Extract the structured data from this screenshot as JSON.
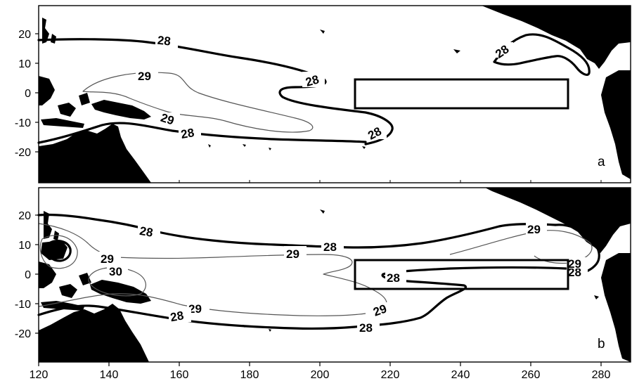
{
  "figure": {
    "x_ticks": [
      "120",
      "140",
      "160",
      "180",
      "200",
      "220",
      "240",
      "260",
      "280"
    ],
    "y_ticks": [
      "20",
      "10",
      "0",
      "-10",
      "-20"
    ]
  },
  "panels": [
    {
      "label": "a",
      "contour_labels": {
        "a": "28",
        "b": "29",
        "c": "28",
        "d": "29",
        "e": "28",
        "f": "28"
      }
    },
    {
      "label": "b",
      "contour_labels": {
        "a": "28",
        "b": "29",
        "c": "28",
        "d": "30",
        "e": "29",
        "f": "28",
        "g": "29",
        "h": "28",
        "i": "28",
        "j": "29",
        "k": "28",
        "l": "29"
      }
    }
  ],
  "chart_data": {
    "type": "map",
    "axes": {
      "x": {
        "ticks": [
          120,
          140,
          160,
          180,
          200,
          220,
          240,
          260,
          280
        ],
        "range": [
          120,
          288
        ]
      },
      "y": {
        "ticks": [
          20,
          10,
          0,
          -10,
          -20
        ],
        "range": [
          -30,
          30
        ]
      }
    },
    "box_region": {
      "lon": [
        210,
        270
      ],
      "lat": [
        -5,
        5
      ]
    },
    "isotherm_levels": [
      28,
      29,
      30
    ],
    "panels": [
      "a",
      "b"
    ],
    "colors": {
      "land": "#000000",
      "ocean": "#ffffff",
      "isotherm_28": "#000000",
      "isotherm_29": "#555555"
    }
  }
}
